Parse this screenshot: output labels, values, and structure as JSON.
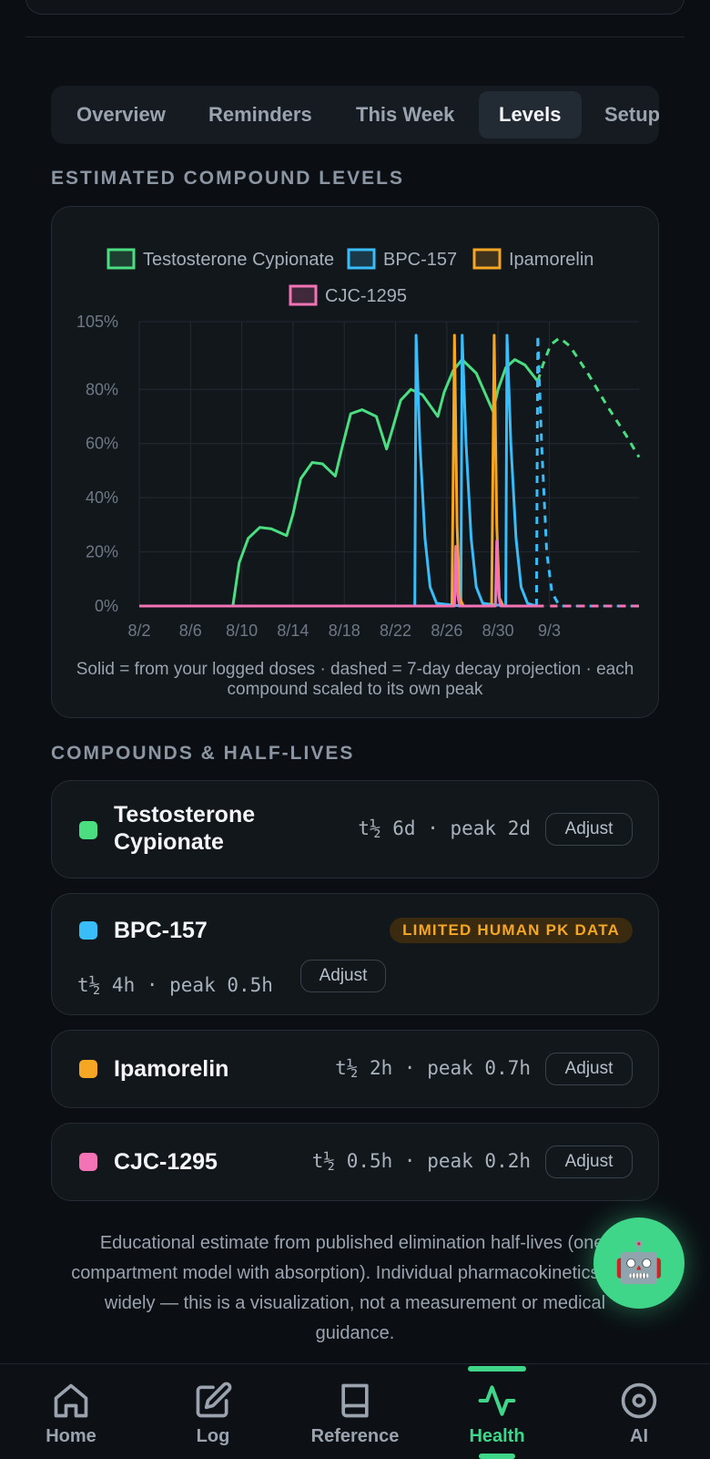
{
  "tabs": [
    {
      "label": "Overview"
    },
    {
      "label": "Reminders"
    },
    {
      "label": "This Week"
    },
    {
      "label": "Levels",
      "active": true
    },
    {
      "label": "Setup"
    }
  ],
  "levels_section": {
    "title": "ESTIMATED COMPOUND LEVELS"
  },
  "chart_data": {
    "type": "line",
    "x_tick_labels": [
      "8/2",
      "8/6",
      "8/10",
      "8/14",
      "8/18",
      "8/22",
      "8/26",
      "8/30",
      "9/3"
    ],
    "y_tick_labels": [
      "0%",
      "20%",
      "40%",
      "60%",
      "80%",
      "105%"
    ],
    "ylim": [
      0,
      105
    ],
    "grid": true,
    "legend_placement": "top",
    "series": [
      {
        "name": "Testosterone Cypionate",
        "color": "#4ade80",
        "logged": [
          [
            0,
            0
          ],
          [
            7.3,
            0
          ],
          [
            7.8,
            16
          ],
          [
            8.5,
            25
          ],
          [
            9.4,
            29
          ],
          [
            10.3,
            28.5
          ],
          [
            11.5,
            26
          ],
          [
            12,
            34
          ],
          [
            12.6,
            47
          ],
          [
            13.5,
            53
          ],
          [
            14.3,
            52.5
          ],
          [
            15.3,
            48
          ],
          [
            15.8,
            58
          ],
          [
            16.5,
            71
          ],
          [
            17.4,
            72.5
          ],
          [
            18.5,
            70
          ],
          [
            19.3,
            58
          ],
          [
            19.8,
            66
          ],
          [
            20.4,
            76
          ],
          [
            21.2,
            80
          ],
          [
            22.1,
            78
          ],
          [
            23.3,
            70
          ],
          [
            23.8,
            79
          ],
          [
            24.5,
            87
          ],
          [
            25.2,
            91
          ],
          [
            26.3,
            86
          ],
          [
            27.6,
            72
          ],
          [
            28,
            80
          ],
          [
            28.6,
            88
          ],
          [
            29.3,
            91
          ],
          [
            30.1,
            89
          ],
          [
            31.1,
            83
          ]
        ],
        "projection": [
          [
            31.1,
            83
          ],
          [
            31.5,
            89
          ],
          [
            32.1,
            96.5
          ],
          [
            32.8,
            99
          ],
          [
            33.6,
            96
          ],
          [
            35,
            86
          ],
          [
            36.5,
            74
          ],
          [
            38,
            63
          ],
          [
            39,
            55
          ]
        ]
      },
      {
        "name": "BPC-157",
        "color": "#38bdf8",
        "logged": [
          [
            0,
            0
          ],
          [
            21.5,
            0
          ],
          [
            21.6,
            100
          ],
          [
            21.9,
            60
          ],
          [
            22.3,
            25
          ],
          [
            22.7,
            7
          ],
          [
            23.2,
            1
          ],
          [
            25.1,
            0
          ],
          [
            25.2,
            100
          ],
          [
            25.5,
            60
          ],
          [
            25.9,
            25
          ],
          [
            26.3,
            7
          ],
          [
            26.8,
            1
          ],
          [
            28.6,
            0
          ],
          [
            28.7,
            100
          ],
          [
            29,
            60
          ],
          [
            29.4,
            25
          ],
          [
            29.8,
            7
          ],
          [
            30.3,
            1
          ],
          [
            31,
            0
          ]
        ],
        "projection": [
          [
            31,
            0
          ],
          [
            31.1,
            100
          ],
          [
            31.4,
            60
          ],
          [
            31.8,
            20
          ],
          [
            32.2,
            5
          ],
          [
            32.8,
            0
          ],
          [
            39,
            0
          ]
        ]
      },
      {
        "name": "Ipamorelin",
        "color": "#f5a623",
        "logged": [
          [
            0,
            0
          ],
          [
            24.4,
            0
          ],
          [
            24.6,
            100
          ],
          [
            24.8,
            30
          ],
          [
            25,
            3
          ],
          [
            25.3,
            0
          ],
          [
            27.5,
            0
          ],
          [
            27.7,
            100
          ],
          [
            27.9,
            30
          ],
          [
            28.1,
            3
          ],
          [
            28.4,
            0
          ],
          [
            31,
            0
          ]
        ],
        "projection": [
          [
            31,
            0
          ],
          [
            39,
            0
          ]
        ]
      },
      {
        "name": "CJC-1295",
        "color": "#f472b6",
        "logged": [
          [
            0,
            0
          ],
          [
            24.6,
            0
          ],
          [
            24.7,
            22
          ],
          [
            24.85,
            4
          ],
          [
            25,
            0
          ],
          [
            27.8,
            0
          ],
          [
            27.9,
            24
          ],
          [
            28.05,
            4
          ],
          [
            28.2,
            0
          ],
          [
            31,
            0
          ]
        ],
        "projection": [
          [
            31,
            0
          ],
          [
            39,
            0
          ]
        ]
      }
    ],
    "caption": "Solid = from your logged doses · dashed = 7-day decay projection · each compound scaled to its own peak"
  },
  "compounds_section": {
    "title": "COMPOUNDS & HALF-LIVES"
  },
  "compounds": [
    {
      "name": "Testosterone Cypionate",
      "meta": "t½ 6d · peak 2d",
      "adjust_label": "Adjust",
      "color": "#4ade80"
    },
    {
      "name": "BPC-157",
      "meta": "t½ 4h · peak 0.5h",
      "adjust_label": "Adjust",
      "color": "#38bdf8",
      "badge": "LIMITED HUMAN PK DATA"
    },
    {
      "name": "Ipamorelin",
      "meta": "t½ 2h · peak 0.7h",
      "adjust_label": "Adjust",
      "color": "#f5a623"
    },
    {
      "name": "CJC-1295",
      "meta": "t½ 0.5h · peak 0.2h",
      "adjust_label": "Adjust",
      "color": "#f472b6"
    }
  ],
  "disclaimer": "Educational estimate from published elimination half-lives (one-compartment model with absorption). Individual pharmacokinetics vary widely — this is a visualization, not a measurement or medical guidance.",
  "fab": {
    "icon": "robot-icon",
    "glyph": "🤖"
  },
  "bottom_nav": [
    {
      "label": "Home",
      "icon": "home-icon"
    },
    {
      "label": "Log",
      "icon": "edit-icon"
    },
    {
      "label": "Reference",
      "icon": "book-icon"
    },
    {
      "label": "Health",
      "icon": "activity-icon",
      "active": true
    },
    {
      "label": "AI",
      "icon": "ai-icon"
    }
  ],
  "colors": {
    "accent": "#3fd68a",
    "background": "#0b0f14"
  }
}
